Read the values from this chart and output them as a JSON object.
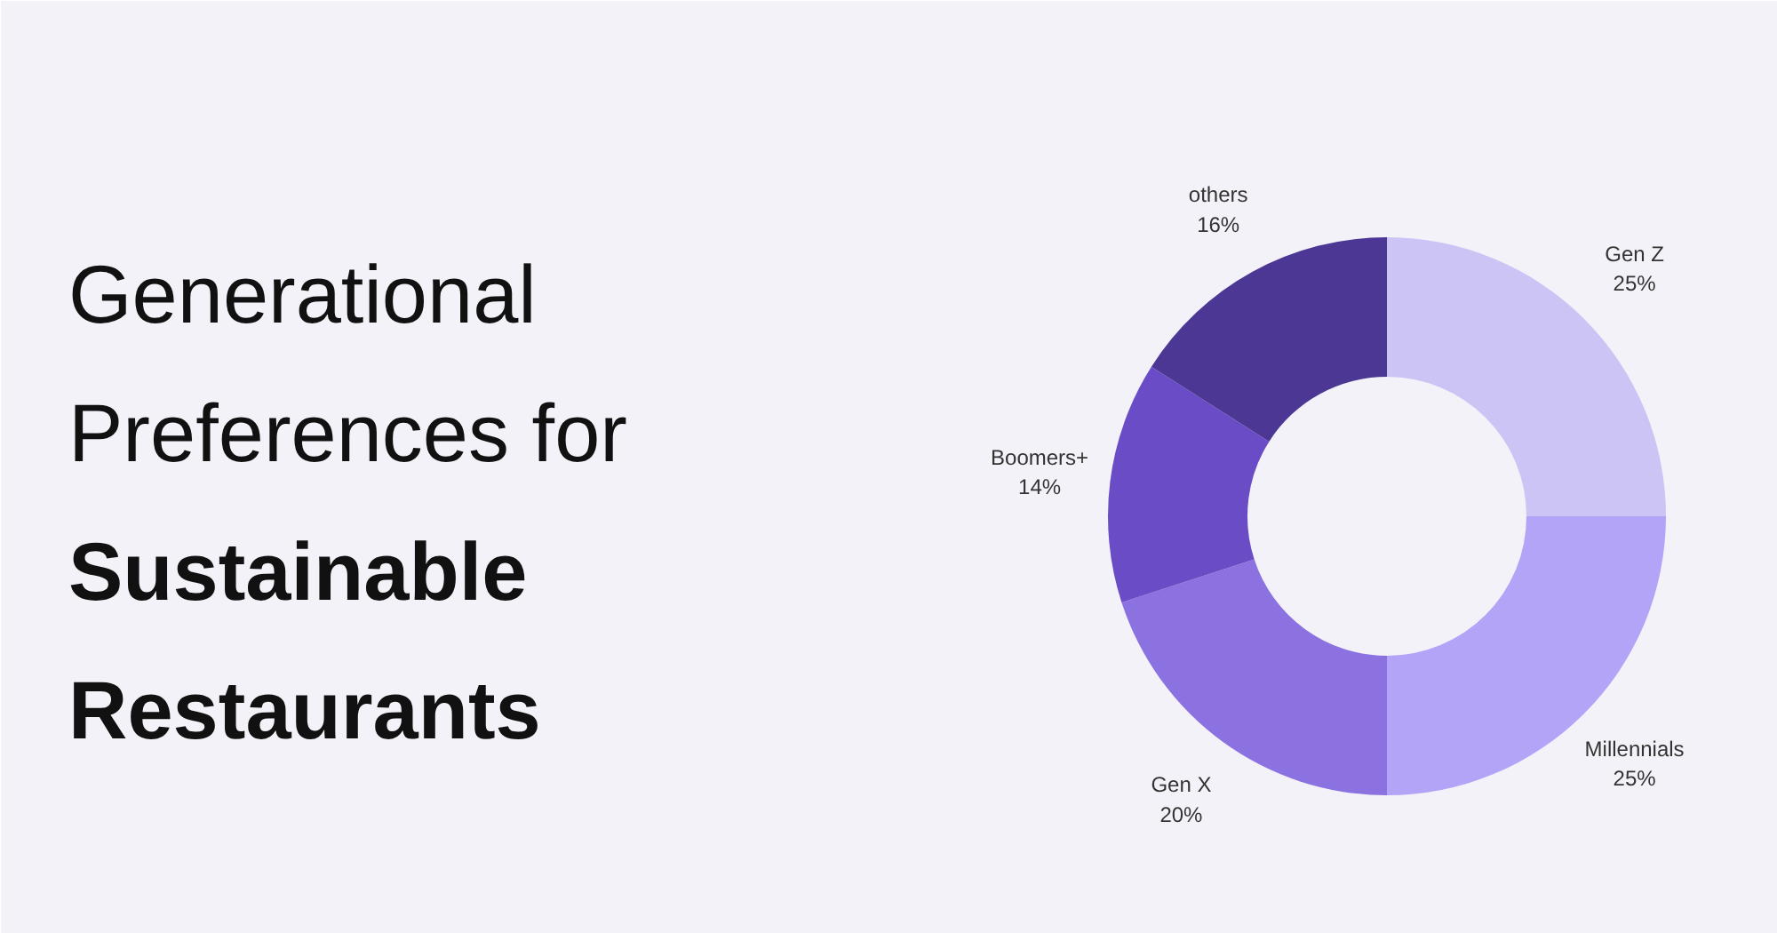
{
  "chart_data": {
    "type": "donut",
    "title": "Generational Preferences for",
    "subtitle": "Sustainable Restaurants",
    "categories": [
      "Gen Z",
      "Millennials",
      "Gen X",
      "Boomers+",
      "others"
    ],
    "values": [
      25,
      25,
      20,
      14,
      16
    ],
    "value_labels": [
      "25%",
      "25%",
      "20%",
      "14%",
      "16%"
    ],
    "colors": [
      "#cdc4f6",
      "#b4a4f8",
      "#8c72e0",
      "#6a4cc6",
      "#4d3795"
    ]
  }
}
